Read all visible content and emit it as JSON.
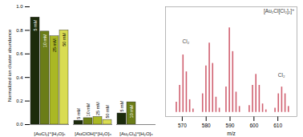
{
  "chart_data": [
    {
      "type": "bar",
      "categories": [
        "[AuCl₂]⁺[H₂O]ₙ",
        "[AuClOH]⁺[H₂O]ₙ",
        "[Au₂Cl₃]⁺[H₂O]ₙ"
      ],
      "series": [
        {
          "name": "5 mM",
          "color": "#1c2b0c",
          "values": [
            0.91,
            0.033,
            0.095
          ]
        },
        {
          "name": "10 mM",
          "color": "#6b7d18",
          "values": [
            0.79,
            0.055,
            0.19
          ]
        },
        {
          "name": "25 mM",
          "color": "#aab824",
          "values": [
            0.75,
            0.065,
            null
          ]
        },
        {
          "name": "50 mM",
          "color": "#d9dc52",
          "values": [
            0.8,
            0.04,
            null
          ]
        }
      ],
      "ylabel": "Normalized ion cluster abundance",
      "ylim": [
        0,
        1.0
      ],
      "yticks": [
        {
          "value": 0.0,
          "label": "0.0"
        },
        0.2,
        0.4,
        0.6,
        0.8,
        {
          "value": 1.0,
          "label": "1.0"
        }
      ]
    },
    {
      "type": "stem",
      "x": [
        567.5,
        568.9,
        570.3,
        571.7,
        573.1,
        574.5,
        578.5,
        579.9,
        581.3,
        582.7,
        584.1,
        585.5,
        588.3,
        589.7,
        591.1,
        592.5,
        593.9,
        598.0,
        599.4,
        600.8,
        602.2,
        603.6,
        605.0,
        608.8,
        610.2,
        611.6,
        613.0,
        614.4
      ],
      "values": [
        0.12,
        0.32,
        0.68,
        0.48,
        0.15,
        0.04,
        0.22,
        0.55,
        0.82,
        0.58,
        0.18,
        0.05,
        0.3,
        1.0,
        0.72,
        0.24,
        0.07,
        0.08,
        0.32,
        0.45,
        0.32,
        0.1,
        0.03,
        0.05,
        0.22,
        0.3,
        0.22,
        0.07
      ],
      "color": "#d06070",
      "xlabel": "m/z",
      "xlim": [
        563,
        618
      ],
      "xticks": [
        570,
        580,
        590,
        600,
        610
      ],
      "ylim": [
        -0.05,
        1.25
      ],
      "tick_labels": "x",
      "annotations": [
        {
          "text": "[Au₂Cl[Cl₂]₂]⁺"
        },
        {
          "text": "Cl₂",
          "x": 571.5,
          "y": 0.82
        },
        {
          "text": "Cl₂",
          "x": 611.5,
          "y": 0.42
        }
      ]
    }
  ]
}
